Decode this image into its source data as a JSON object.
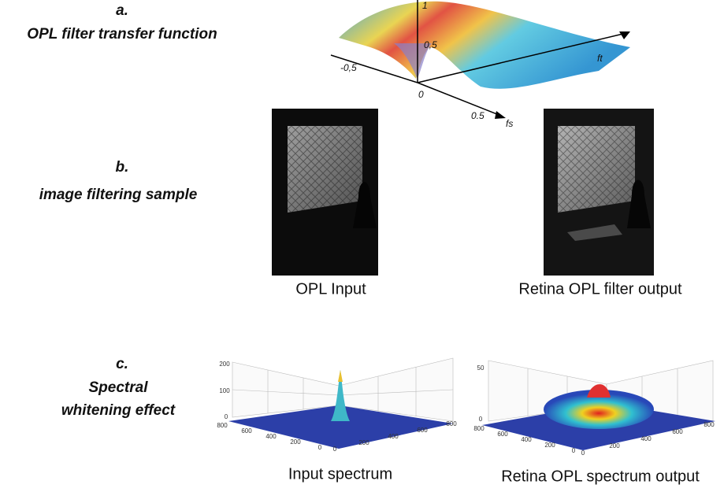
{
  "panels": [
    {
      "letter": "a.",
      "caption": "OPL filter transfer function",
      "axis_labels": [
        "1",
        "0,5",
        "-0,5",
        "0",
        "0.5",
        "fs",
        "ft"
      ]
    },
    {
      "letter": "b.",
      "caption": "image filtering sample",
      "images": [
        "OPL Input",
        "Retina OPL filter output"
      ]
    },
    {
      "letter": "c.",
      "caption_lines": [
        "Spectral",
        "whitening effect"
      ],
      "plots": [
        {
          "label": "Input spectrum",
          "z_ticks": [
            "200",
            "100",
            "0"
          ],
          "y_ticks": [
            "800",
            "600",
            "400",
            "200",
            "0"
          ],
          "x_ticks": [
            "0",
            "200",
            "400",
            "600",
            "800"
          ]
        },
        {
          "label": "Retina OPL spectrum output",
          "z_ticks": [
            "50",
            "0"
          ],
          "y_ticks": [
            "800",
            "600",
            "400",
            "200",
            "0"
          ],
          "x_ticks": [
            "0",
            "200",
            "400",
            "600",
            "800"
          ]
        }
      ]
    }
  ]
}
